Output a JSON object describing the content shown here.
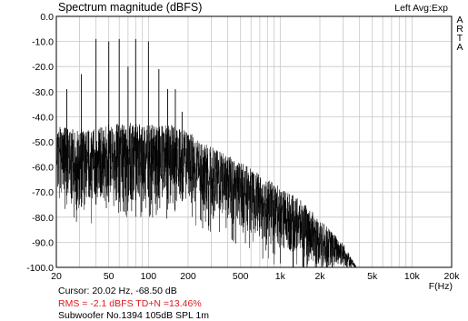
{
  "header": {
    "title": "Spectrum magnitude (dBFS)",
    "channel_info": "Left  Avg:Exp",
    "watermark_letters": [
      "A",
      "R",
      "T",
      "A"
    ]
  },
  "footer": {
    "cursor": "Cursor: 20.02 Hz, -68.50 dB",
    "rms": "RMS =   -2.1 dBFS  TD+N =13.46%",
    "caption": "Subwoofer No.1394 105dB SPL 1m"
  },
  "colors": {
    "trace": "#000000",
    "grid": "#c8c8c8",
    "rms_text": "#e0181b"
  },
  "chart_data": {
    "type": "line",
    "title": "Spectrum magnitude (dBFS)",
    "xlabel": "F(Hz)",
    "ylabel": "",
    "x_scale": "log",
    "xlim": [
      20,
      20000
    ],
    "ylim": [
      -100,
      0
    ],
    "grid": true,
    "x_ticks": [
      20,
      50,
      100,
      200,
      500,
      1000,
      2000,
      5000,
      10000,
      20000
    ],
    "x_tick_labels": [
      "20",
      "50",
      "100",
      "200",
      "500",
      "1k",
      "2k",
      "5k",
      "10k",
      "20k"
    ],
    "y_ticks": [
      0,
      -10,
      -20,
      -30,
      -40,
      -50,
      -60,
      -70,
      -80,
      -90,
      -100
    ],
    "y_tick_labels": [
      "0.0",
      "-10.0",
      "-20.0",
      "-30.0",
      "-40.0",
      "-50.0",
      "-60.0",
      "-70.0",
      "-80.0",
      "-90.0",
      "-100.0"
    ],
    "series": [
      {
        "values": {
          "envelope_x": [
            20,
            25,
            30,
            40,
            50,
            70,
            100,
            150,
            200,
            300,
            500,
            700,
            1000,
            1500,
            2000,
            3000,
            3800
          ],
          "envelope_peak_db": [
            -42,
            -45,
            -44,
            -45,
            -43,
            -42,
            -43,
            -43,
            -46,
            -52,
            -58,
            -63,
            -68,
            -74,
            -81,
            -90,
            -100
          ],
          "envelope_floor_db": [
            -68,
            -72,
            -76,
            -75,
            -74,
            -74,
            -72,
            -73,
            -74,
            -78,
            -84,
            -88,
            -92,
            -97,
            -100,
            -100,
            -100
          ]
        },
        "harmonic_peaks": [
          {
            "x": 20,
            "y": -38
          },
          {
            "x": 24,
            "y": -29
          },
          {
            "x": 31,
            "y": -23
          },
          {
            "x": 40,
            "y": -9
          },
          {
            "x": 50,
            "y": -10
          },
          {
            "x": 60,
            "y": -9
          },
          {
            "x": 70,
            "y": -20
          },
          {
            "x": 80,
            "y": -9
          },
          {
            "x": 100,
            "y": -10
          },
          {
            "x": 120,
            "y": -21
          },
          {
            "x": 140,
            "y": -29
          },
          {
            "x": 160,
            "y": -29
          },
          {
            "x": 180,
            "y": -38
          }
        ]
      }
    ]
  }
}
